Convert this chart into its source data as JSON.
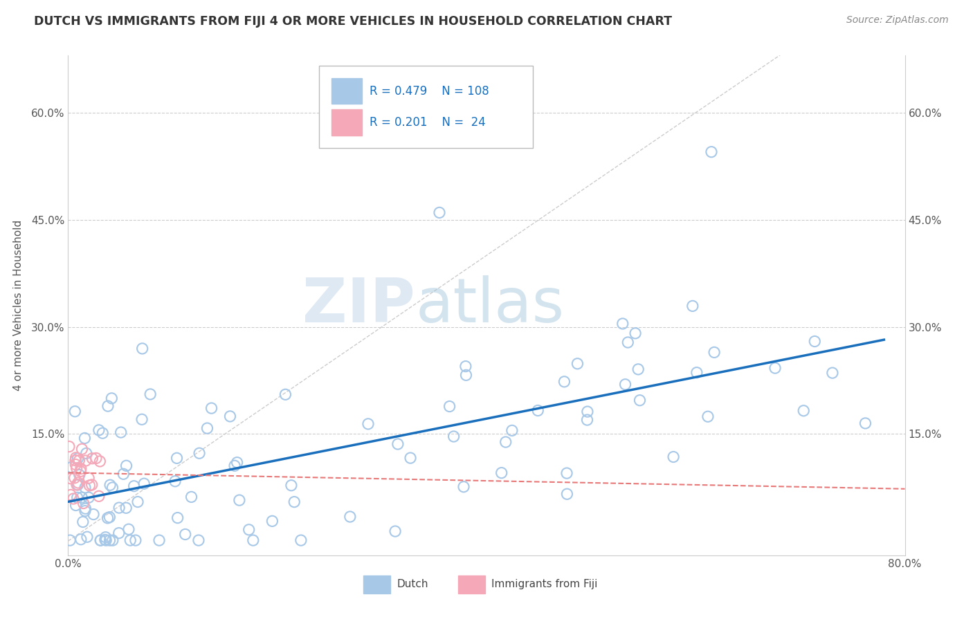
{
  "title": "DUTCH VS IMMIGRANTS FROM FIJI 4 OR MORE VEHICLES IN HOUSEHOLD CORRELATION CHART",
  "source": "Source: ZipAtlas.com",
  "ylabel_label": "4 or more Vehicles in Household",
  "xlim": [
    0.0,
    0.8
  ],
  "ylim": [
    -0.02,
    0.68
  ],
  "xtick_positions": [
    0.0,
    0.1,
    0.2,
    0.3,
    0.4,
    0.5,
    0.6,
    0.7,
    0.8
  ],
  "xtick_labels": [
    "0.0%",
    "",
    "",
    "",
    "",
    "",
    "",
    "",
    "80.0%"
  ],
  "ytick_positions": [
    0.0,
    0.15,
    0.3,
    0.45,
    0.6
  ],
  "ytick_labels": [
    "",
    "15.0%",
    "30.0%",
    "45.0%",
    "60.0%"
  ],
  "legend_R1": "0.479",
  "legend_N1": "108",
  "legend_R2": "0.201",
  "legend_N2": "24",
  "dutch_color": "#a8c8e8",
  "fiji_color": "#f4a8b8",
  "trend_dutch_color": "#1a6fbd",
  "trend_fiji_color": "#e87878",
  "diag_color": "#cccccc",
  "watermark_zip": "ZIP",
  "watermark_atlas": "atlas",
  "background_color": "#ffffff",
  "title_color": "#333333",
  "source_color": "#888888",
  "tick_color": "#555555",
  "grid_color": "#cccccc",
  "legend_text_color": "#1a6fbd",
  "legend_label_color": "#444444"
}
